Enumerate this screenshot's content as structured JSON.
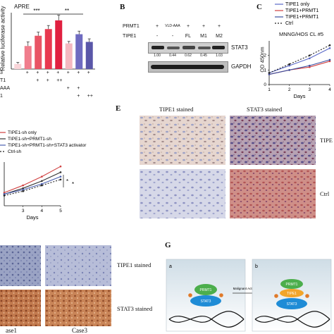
{
  "panelA": {
    "ylabel": "Relative luciferase activity",
    "label": "APRE",
    "sig": [
      "***",
      "**"
    ],
    "row_labels": [
      "3",
      "T1",
      "AAA",
      "1"
    ],
    "rows": [
      [
        "",
        "+",
        "+",
        "+",
        "+",
        "+",
        "+",
        "+"
      ],
      [
        "",
        "",
        "+",
        "+",
        "++",
        "",
        "",
        ""
      ],
      [
        "",
        "",
        "",
        "",
        "",
        "+",
        "+",
        ""
      ],
      [
        "",
        "",
        "",
        "",
        "",
        "",
        "+",
        "++"
      ]
    ]
  },
  "panelB": {
    "letter": "B",
    "prmt1_label": "PRMT1",
    "tipe1_label": "TIPE1",
    "prmt1_row": [
      "+",
      "VLD-AAA",
      "+",
      "+",
      "+"
    ],
    "tipe1_row": [
      "-",
      "-",
      "FL",
      "M1",
      "M2"
    ],
    "values": [
      "1.00",
      "0.44",
      "0.62",
      "0.45",
      "1.03"
    ],
    "band1": "STAT3",
    "band2": "GAPDH"
  },
  "panelC": {
    "letter": "C",
    "title": "MNNG/HOS CL #5",
    "ylabel": "OD 450nm",
    "xlabel": "Days",
    "legend": [
      "TIPE1 only",
      "TIPE1+PRMT1",
      "TIPE1+PRMT1",
      "Ctrl"
    ],
    "xticks": [
      "1",
      "2",
      "3",
      "4"
    ],
    "yticks": [
      "0",
      "1",
      "2"
    ]
  },
  "panelD": {
    "legend": [
      "TIPE1-sh only",
      "TIPE1-sh+PRMT1-sh",
      "TIPE1-sh+PRMT1-sh+STAT3 activator",
      "Ctrl-sh"
    ],
    "xlabel": "Days",
    "xticks": [
      "3",
      "4",
      "5"
    ],
    "sig": [
      "*",
      "*"
    ]
  },
  "panelE": {
    "letter": "E",
    "col1": "TIPE1 stained",
    "col2": "STAT3 stained",
    "row1": "TIPE",
    "row2": "Ctrl"
  },
  "panelF": {
    "label1": "TIPE1 stained",
    "label2": "STAT3 stained",
    "case1": "ase1",
    "case2": "Case3"
  },
  "panelG": {
    "letter": "G",
    "sub_a": "a",
    "sub_b": "b",
    "prmt1": "PRMT1",
    "stat3": "STAT3",
    "tipe1": "TIPE1",
    "arrow_label": "Malignant Activity"
  },
  "chart_data": [
    {
      "type": "bar",
      "ylabel": "Relative luciferase activity",
      "categories": [
        "1",
        "2",
        "3",
        "4",
        "5",
        "6",
        "7",
        "8"
      ],
      "values": [
        1.0,
        4.5,
        6.5,
        7.8,
        9.5,
        5.0,
        6.8,
        5.3
      ],
      "errors": [
        0.3,
        0.8,
        0.7,
        0.7,
        1.0,
        0.4,
        0.6,
        0.6
      ],
      "colors": [
        "#f9d5d9",
        "#f07d8c",
        "#e95465",
        "#e8384f",
        "#e02040",
        "#f4b8c0",
        "#6f6bc0",
        "#5a57a8"
      ],
      "ylim": [
        0,
        11
      ]
    },
    {
      "type": "line",
      "title": "MNNG/HOS CL #5",
      "xlabel": "Days",
      "ylabel": "OD 450nm",
      "x": [
        1,
        2,
        3,
        4
      ],
      "series": [
        {
          "name": "TIPE1 only",
          "values": [
            0.8,
            1.3,
            1.8,
            2.5
          ],
          "color": "#5a69c8"
        },
        {
          "name": "TIPE1+PRMT1",
          "values": [
            0.7,
            1.0,
            1.2,
            1.6
          ],
          "color": "#d04040"
        },
        {
          "name": "TIPE1+PRMT1",
          "values": [
            0.7,
            1.0,
            1.3,
            1.7
          ],
          "color": "#3a4fa0"
        },
        {
          "name": "Ctrl",
          "values": [
            0.8,
            1.4,
            2.0,
            2.7
          ],
          "color": "#222222"
        }
      ],
      "ylim": [
        0,
        3
      ]
    },
    {
      "type": "line",
      "xlabel": "Days",
      "x": [
        2,
        3,
        4,
        5
      ],
      "series": [
        {
          "name": "TIPE1-sh only",
          "values": [
            0.9,
            1.4,
            2.0,
            2.7
          ],
          "color": "#d04040"
        },
        {
          "name": "TIPE1-sh+PRMT1-sh",
          "values": [
            0.8,
            1.2,
            1.7,
            2.3
          ],
          "color": "#333333"
        },
        {
          "name": "TIPE1-sh+PRMT1-sh+STAT3 activator",
          "values": [
            0.8,
            1.1,
            1.5,
            2.0
          ],
          "color": "#4a5fb0"
        },
        {
          "name": "Ctrl-sh",
          "values": [
            0.7,
            1.0,
            1.4,
            1.8
          ],
          "color": "#222222"
        }
      ],
      "ylim": [
        0,
        3
      ]
    }
  ]
}
